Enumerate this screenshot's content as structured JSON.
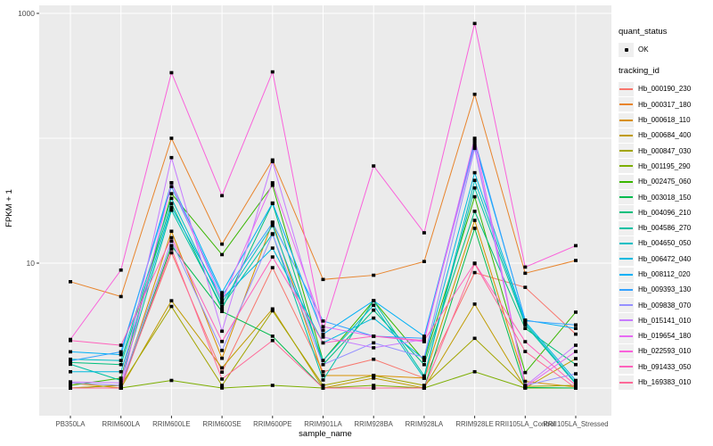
{
  "chart_data": {
    "type": "line",
    "title": "",
    "xlabel": "sample_name",
    "ylabel": "FPKM + 1",
    "y_scale": "log10",
    "ylim": [
      1,
      1100
    ],
    "y_gridlines": [
      1000,
      100,
      10,
      1
    ],
    "y_ticks_labeled": [
      1000,
      10
    ],
    "grid": "on",
    "legend_position": "right",
    "x_categories": [
      "PB350LA",
      "RRIM600LA",
      "RRIM600LE",
      "RRIM600SE",
      "RRIM600PE",
      "RRIM901LA",
      "RRIM928BA",
      "RRIM928LA",
      "RRIM928LE",
      "RRII105LA_Control",
      "RRII105LA_Stressed"
    ],
    "legend": {
      "quant_status_title": "quant_status",
      "quant_status_items": [
        {
          "label": "OK",
          "marker": "black-point"
        }
      ],
      "tracking_title": "tracking_id"
    },
    "series": [
      {
        "name": "Hb_000190_230",
        "color": "#F8766D",
        "values": [
          1.0,
          1.05,
          12.1,
          1.34,
          9.2,
          1.35,
          1.7,
          1.2,
          8.4,
          6.4,
          2.7
        ]
      },
      {
        "name": "Hb_000317_180",
        "color": "#E8842C",
        "values": [
          7.1,
          5.4,
          100,
          14.2,
          67,
          7.4,
          8.0,
          10.3,
          225,
          8.3,
          10.5
        ]
      },
      {
        "name": "Hb_000618_110",
        "color": "#D89000",
        "values": [
          1.1,
          1.0,
          18.0,
          1.73,
          21.3,
          1.26,
          1.26,
          1.2,
          22.0,
          1.13,
          1.02
        ]
      },
      {
        "name": "Hb_000684_400",
        "color": "#C09B00",
        "values": [
          1.0,
          1.0,
          5.0,
          1.45,
          4.3,
          1.0,
          1.2,
          1.0,
          4.7,
          1.0,
          1.72
        ]
      },
      {
        "name": "Hb_000847_030",
        "color": "#A3A500",
        "values": [
          1.0,
          1.05,
          4.5,
          1.05,
          4.15,
          1.05,
          1.26,
          1.05,
          2.5,
          1.03,
          1.05
        ]
      },
      {
        "name": "Hb_001195_290",
        "color": "#7CAE00",
        "values": [
          1.0,
          1.0,
          1.15,
          1.0,
          1.05,
          1.0,
          1.05,
          1.0,
          1.35,
          1.0,
          1.0
        ]
      },
      {
        "name": "Hb_002475_060",
        "color": "#39B600",
        "values": [
          1.05,
          1.2,
          36.0,
          11.7,
          42.0,
          1.66,
          5.0,
          1.66,
          34.0,
          1.33,
          4.05
        ]
      },
      {
        "name": "Hb_003018_150",
        "color": "#00BB4E",
        "values": [
          1.0,
          1.0,
          13.8,
          4.1,
          2.6,
          1.0,
          1.0,
          1.0,
          19.0,
          1.01,
          1.0
        ]
      },
      {
        "name": "Hb_004096_210",
        "color": "#00BF7D",
        "values": [
          1.6,
          1.54,
          30.0,
          4.3,
          30.0,
          1.54,
          4.2,
          1.54,
          26.0,
          3.0,
          1.54
        ]
      },
      {
        "name": "Hb_004586_270",
        "color": "#00C1A3",
        "values": [
          1.55,
          1.15,
          26.5,
          4.5,
          17.2,
          1.16,
          5.0,
          1.25,
          40.0,
          3.2,
          1.08
        ]
      },
      {
        "name": "Hb_004650_050",
        "color": "#00BFC4",
        "values": [
          1.7,
          1.66,
          33.0,
          4.8,
          20.0,
          1.66,
          4.6,
          1.2,
          46.0,
          3.3,
          1.1
        ]
      },
      {
        "name": "Hb_006472_040",
        "color": "#00BAE0",
        "values": [
          1.35,
          1.35,
          28.0,
          5.2,
          13.2,
          2.3,
          3.63,
          1.7,
          53.0,
          3.4,
          1.15
        ]
      },
      {
        "name": "Hb_008112_020",
        "color": "#00B0F6",
        "values": [
          1.95,
          1.85,
          44.0,
          5.8,
          30.3,
          2.7,
          5.0,
          2.6,
          91.0,
          3.5,
          3.0
        ]
      },
      {
        "name": "Hb_009393_130",
        "color": "#35A2FF",
        "values": [
          1.65,
          1.95,
          41.0,
          5.5,
          21.0,
          3.44,
          2.6,
          2.5,
          96.0,
          3.45,
          3.2
        ]
      },
      {
        "name": "Hb_009838_070",
        "color": "#9590FF",
        "values": [
          1.1,
          1.05,
          15.0,
          2.0,
          17.0,
          1.54,
          2.3,
          1.76,
          83.0,
          1.05,
          1.3
        ]
      },
      {
        "name": "Hb_015141_010",
        "color": "#C77CFF",
        "values": [
          1.12,
          1.1,
          70.0,
          2.85,
          65.0,
          2.56,
          2.1,
          2.45,
          87.0,
          1.04,
          2.2
        ]
      },
      {
        "name": "Hb_019654_180",
        "color": "#E76BF3",
        "values": [
          1.0,
          1.0,
          44.0,
          5.0,
          44.0,
          3.1,
          2.6,
          2.35,
          100.0,
          1.02,
          1.96
        ]
      },
      {
        "name": "Hb_022593_010",
        "color": "#FA62DB",
        "values": [
          2.45,
          8.8,
          335,
          34.7,
          340,
          2.9,
          60.0,
          17.5,
          830,
          9.3,
          13.8
        ]
      },
      {
        "name": "Hb_091433_050",
        "color": "#FF62BC",
        "values": [
          2.4,
          2.2,
          16.0,
          2.36,
          11.2,
          2.3,
          2.6,
          2.4,
          10.0,
          2.35,
          1.05
        ]
      },
      {
        "name": "Hb_169383_010",
        "color": "#FF6A98",
        "values": [
          1.0,
          1.0,
          13.0,
          1.18,
          2.4,
          1.0,
          1.0,
          1.0,
          9.9,
          1.96,
          1.0
        ]
      }
    ],
    "panel_bg": "#EBEBEB",
    "gridline_color": "#FFFFFF",
    "tick_label_color": "#4D4D4D",
    "point_color": "#000000"
  }
}
